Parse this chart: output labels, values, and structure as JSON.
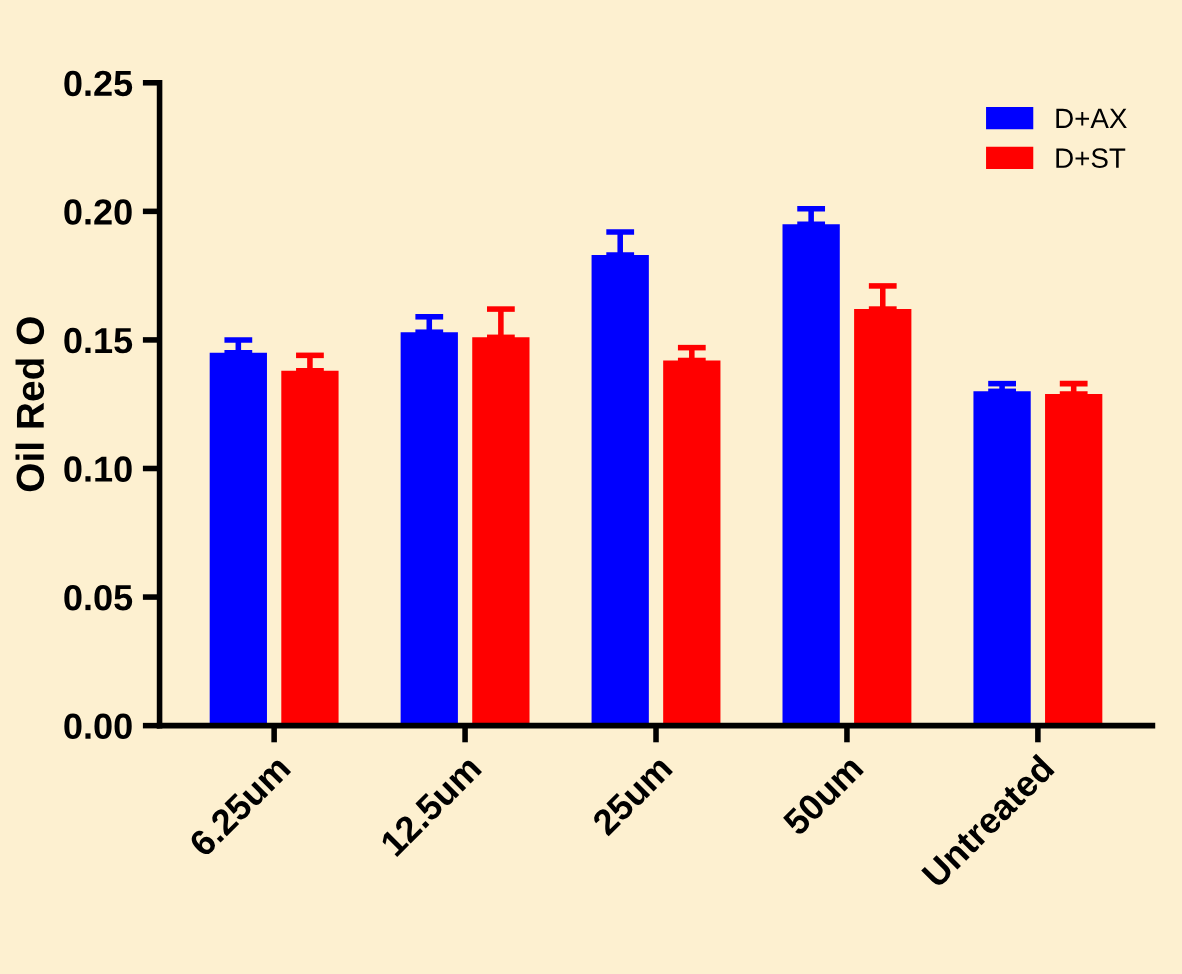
{
  "chart_data": {
    "type": "bar",
    "ylabel": "Oil Red O",
    "categories": [
      "6.25um",
      "12.5um",
      "25um",
      "50um",
      "Untreated"
    ],
    "series": [
      {
        "name": "D+AX",
        "color": "#0000ff",
        "values": [
          0.145,
          0.153,
          0.183,
          0.195,
          0.13
        ],
        "errors": [
          [
            0.145,
            0.15
          ],
          [
            0.153,
            0.159
          ],
          [
            0.183,
            0.192
          ],
          [
            0.195,
            0.201
          ],
          [
            0.13,
            0.133
          ]
        ]
      },
      {
        "name": "D+ST",
        "color": "#ff0000",
        "values": [
          0.138,
          0.151,
          0.142,
          0.162,
          0.129
        ],
        "errors": [
          [
            0.138,
            0.144
          ],
          [
            0.151,
            0.162
          ],
          [
            0.142,
            0.147
          ],
          [
            0.162,
            0.171
          ],
          [
            0.129,
            0.133
          ]
        ]
      }
    ],
    "ylim": [
      0,
      0.25
    ],
    "yticks": [
      {
        "value": 0,
        "label": "0.00"
      },
      {
        "value": 0.05,
        "label": "0.05"
      },
      {
        "value": 0.1,
        "label": "0.10"
      },
      {
        "value": 0.15,
        "label": "0.15"
      },
      {
        "value": 0.2,
        "label": "0.20"
      },
      {
        "value": 0.25,
        "label": "0.25"
      }
    ],
    "legend": "top right",
    "grid": false
  }
}
